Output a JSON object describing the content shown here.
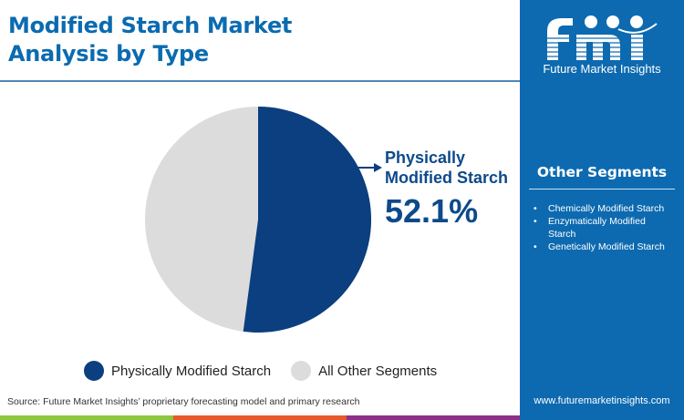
{
  "header": {
    "title": "Modified Starch Market Analysis by Type"
  },
  "callout": {
    "label": "Physically Modified Starch",
    "value": "52.1%"
  },
  "legend": [
    {
      "label": "Physically Modified Starch",
      "color": "#0b3f7f"
    },
    {
      "label": "All Other Segments",
      "color": "#dcdcdc"
    }
  ],
  "source": "Source: Future Market Insights’ proprietary forecasting model and primary research",
  "sidebar": {
    "logo_text": "Future Market Insights",
    "other_segments_title": "Other Segments",
    "other_segments": [
      "Chemically Modified Starch",
      "Enzymatically Modified Starch",
      "Genetically Modified Starch"
    ],
    "url": "www.futuremarketinsights.com"
  },
  "colors": {
    "accent": "#0d6ab0",
    "pie_primary": "#0b3f7f",
    "pie_other": "#dcdcdc",
    "stripe": [
      "#8dc63f",
      "#e8582a",
      "#8e2f8a"
    ]
  },
  "chart_data": {
    "type": "pie",
    "title": "Modified Starch Market Analysis by Type",
    "categories": [
      "Physically Modified Starch",
      "All Other Segments"
    ],
    "values": [
      52.1,
      47.9
    ],
    "colors": [
      "#0b3f7f",
      "#dcdcdc"
    ],
    "legend_position": "bottom",
    "annotations": [
      {
        "label": "Physically Modified Starch",
        "value": "52.1%"
      }
    ]
  }
}
